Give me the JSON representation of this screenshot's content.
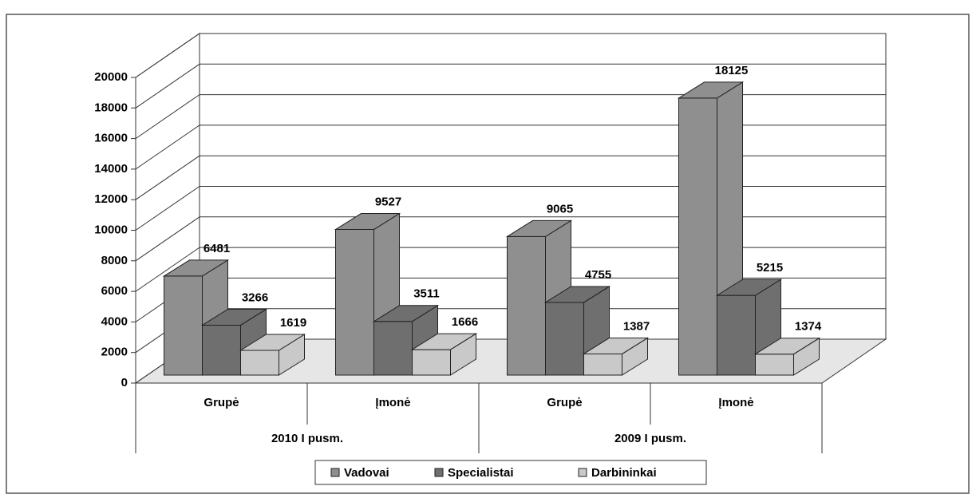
{
  "chart_data": {
    "type": "bar3d",
    "categories": [
      "Grupė",
      "Įmonė",
      "Grupė",
      "Įmonė"
    ],
    "groups": [
      "2010 I pusm.",
      "2009 I pusm."
    ],
    "series": [
      {
        "name": "Vadovai",
        "color": "#8f8f8f",
        "values": [
          6481,
          9527,
          9065,
          18125
        ]
      },
      {
        "name": "Specialistai",
        "color": "#6f6f6f",
        "values": [
          3266,
          3511,
          4755,
          5215
        ]
      },
      {
        "name": "Darbininkai",
        "color": "#c9c9c9",
        "values": [
          1619,
          1666,
          1387,
          1374
        ]
      }
    ],
    "ylim": [
      0,
      20000
    ],
    "yticks": [
      0,
      2000,
      4000,
      6000,
      8000,
      10000,
      12000,
      14000,
      16000,
      18000,
      20000
    ],
    "grid": true,
    "legend": "bottom"
  }
}
